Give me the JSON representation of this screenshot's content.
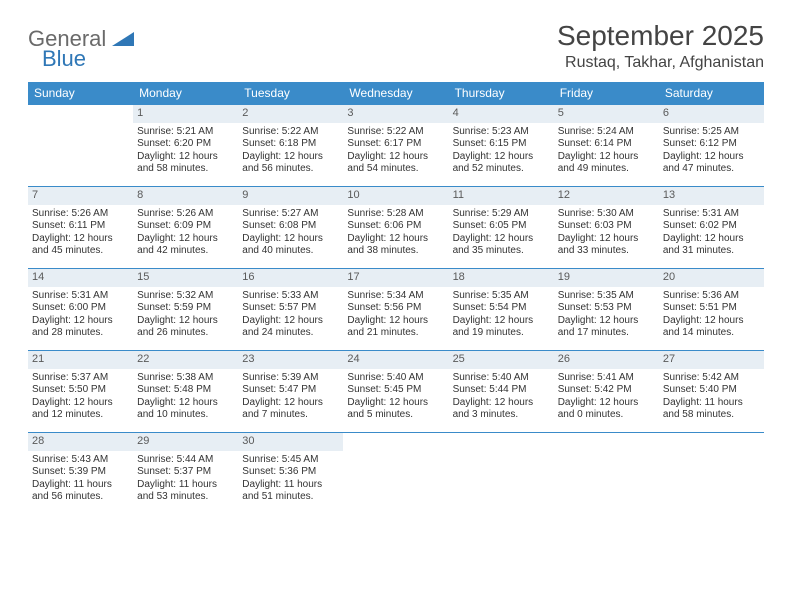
{
  "brand": {
    "line1": "General",
    "line2": "Blue"
  },
  "title": "September 2025",
  "location": "Rustaq, Takhar, Afghanistan",
  "colors": {
    "header_bg": "#3a8bc9",
    "header_text": "#ffffff",
    "daynum_bg": "#e7eef4",
    "text": "#333333",
    "brand_gray": "#6a6a6a",
    "brand_blue": "#2f77b6"
  },
  "daysOfWeek": [
    "Sunday",
    "Monday",
    "Tuesday",
    "Wednesday",
    "Thursday",
    "Friday",
    "Saturday"
  ],
  "cells": [
    {
      "day": "",
      "sunrise": "",
      "sunset": "",
      "daylight": "",
      "empty": true
    },
    {
      "day": "1",
      "sunrise": "Sunrise: 5:21 AM",
      "sunset": "Sunset: 6:20 PM",
      "daylight": "Daylight: 12 hours and 58 minutes."
    },
    {
      "day": "2",
      "sunrise": "Sunrise: 5:22 AM",
      "sunset": "Sunset: 6:18 PM",
      "daylight": "Daylight: 12 hours and 56 minutes."
    },
    {
      "day": "3",
      "sunrise": "Sunrise: 5:22 AM",
      "sunset": "Sunset: 6:17 PM",
      "daylight": "Daylight: 12 hours and 54 minutes."
    },
    {
      "day": "4",
      "sunrise": "Sunrise: 5:23 AM",
      "sunset": "Sunset: 6:15 PM",
      "daylight": "Daylight: 12 hours and 52 minutes."
    },
    {
      "day": "5",
      "sunrise": "Sunrise: 5:24 AM",
      "sunset": "Sunset: 6:14 PM",
      "daylight": "Daylight: 12 hours and 49 minutes."
    },
    {
      "day": "6",
      "sunrise": "Sunrise: 5:25 AM",
      "sunset": "Sunset: 6:12 PM",
      "daylight": "Daylight: 12 hours and 47 minutes."
    },
    {
      "day": "7",
      "sunrise": "Sunrise: 5:26 AM",
      "sunset": "Sunset: 6:11 PM",
      "daylight": "Daylight: 12 hours and 45 minutes."
    },
    {
      "day": "8",
      "sunrise": "Sunrise: 5:26 AM",
      "sunset": "Sunset: 6:09 PM",
      "daylight": "Daylight: 12 hours and 42 minutes."
    },
    {
      "day": "9",
      "sunrise": "Sunrise: 5:27 AM",
      "sunset": "Sunset: 6:08 PM",
      "daylight": "Daylight: 12 hours and 40 minutes."
    },
    {
      "day": "10",
      "sunrise": "Sunrise: 5:28 AM",
      "sunset": "Sunset: 6:06 PM",
      "daylight": "Daylight: 12 hours and 38 minutes."
    },
    {
      "day": "11",
      "sunrise": "Sunrise: 5:29 AM",
      "sunset": "Sunset: 6:05 PM",
      "daylight": "Daylight: 12 hours and 35 minutes."
    },
    {
      "day": "12",
      "sunrise": "Sunrise: 5:30 AM",
      "sunset": "Sunset: 6:03 PM",
      "daylight": "Daylight: 12 hours and 33 minutes."
    },
    {
      "day": "13",
      "sunrise": "Sunrise: 5:31 AM",
      "sunset": "Sunset: 6:02 PM",
      "daylight": "Daylight: 12 hours and 31 minutes."
    },
    {
      "day": "14",
      "sunrise": "Sunrise: 5:31 AM",
      "sunset": "Sunset: 6:00 PM",
      "daylight": "Daylight: 12 hours and 28 minutes."
    },
    {
      "day": "15",
      "sunrise": "Sunrise: 5:32 AM",
      "sunset": "Sunset: 5:59 PM",
      "daylight": "Daylight: 12 hours and 26 minutes."
    },
    {
      "day": "16",
      "sunrise": "Sunrise: 5:33 AM",
      "sunset": "Sunset: 5:57 PM",
      "daylight": "Daylight: 12 hours and 24 minutes."
    },
    {
      "day": "17",
      "sunrise": "Sunrise: 5:34 AM",
      "sunset": "Sunset: 5:56 PM",
      "daylight": "Daylight: 12 hours and 21 minutes."
    },
    {
      "day": "18",
      "sunrise": "Sunrise: 5:35 AM",
      "sunset": "Sunset: 5:54 PM",
      "daylight": "Daylight: 12 hours and 19 minutes."
    },
    {
      "day": "19",
      "sunrise": "Sunrise: 5:35 AM",
      "sunset": "Sunset: 5:53 PM",
      "daylight": "Daylight: 12 hours and 17 minutes."
    },
    {
      "day": "20",
      "sunrise": "Sunrise: 5:36 AM",
      "sunset": "Sunset: 5:51 PM",
      "daylight": "Daylight: 12 hours and 14 minutes."
    },
    {
      "day": "21",
      "sunrise": "Sunrise: 5:37 AM",
      "sunset": "Sunset: 5:50 PM",
      "daylight": "Daylight: 12 hours and 12 minutes."
    },
    {
      "day": "22",
      "sunrise": "Sunrise: 5:38 AM",
      "sunset": "Sunset: 5:48 PM",
      "daylight": "Daylight: 12 hours and 10 minutes."
    },
    {
      "day": "23",
      "sunrise": "Sunrise: 5:39 AM",
      "sunset": "Sunset: 5:47 PM",
      "daylight": "Daylight: 12 hours and 7 minutes."
    },
    {
      "day": "24",
      "sunrise": "Sunrise: 5:40 AM",
      "sunset": "Sunset: 5:45 PM",
      "daylight": "Daylight: 12 hours and 5 minutes."
    },
    {
      "day": "25",
      "sunrise": "Sunrise: 5:40 AM",
      "sunset": "Sunset: 5:44 PM",
      "daylight": "Daylight: 12 hours and 3 minutes."
    },
    {
      "day": "26",
      "sunrise": "Sunrise: 5:41 AM",
      "sunset": "Sunset: 5:42 PM",
      "daylight": "Daylight: 12 hours and 0 minutes."
    },
    {
      "day": "27",
      "sunrise": "Sunrise: 5:42 AM",
      "sunset": "Sunset: 5:40 PM",
      "daylight": "Daylight: 11 hours and 58 minutes."
    },
    {
      "day": "28",
      "sunrise": "Sunrise: 5:43 AM",
      "sunset": "Sunset: 5:39 PM",
      "daylight": "Daylight: 11 hours and 56 minutes."
    },
    {
      "day": "29",
      "sunrise": "Sunrise: 5:44 AM",
      "sunset": "Sunset: 5:37 PM",
      "daylight": "Daylight: 11 hours and 53 minutes."
    },
    {
      "day": "30",
      "sunrise": "Sunrise: 5:45 AM",
      "sunset": "Sunset: 5:36 PM",
      "daylight": "Daylight: 11 hours and 51 minutes."
    },
    {
      "day": "",
      "sunrise": "",
      "sunset": "",
      "daylight": "",
      "empty": true
    },
    {
      "day": "",
      "sunrise": "",
      "sunset": "",
      "daylight": "",
      "empty": true
    },
    {
      "day": "",
      "sunrise": "",
      "sunset": "",
      "daylight": "",
      "empty": true
    },
    {
      "day": "",
      "sunrise": "",
      "sunset": "",
      "daylight": "",
      "empty": true
    }
  ]
}
